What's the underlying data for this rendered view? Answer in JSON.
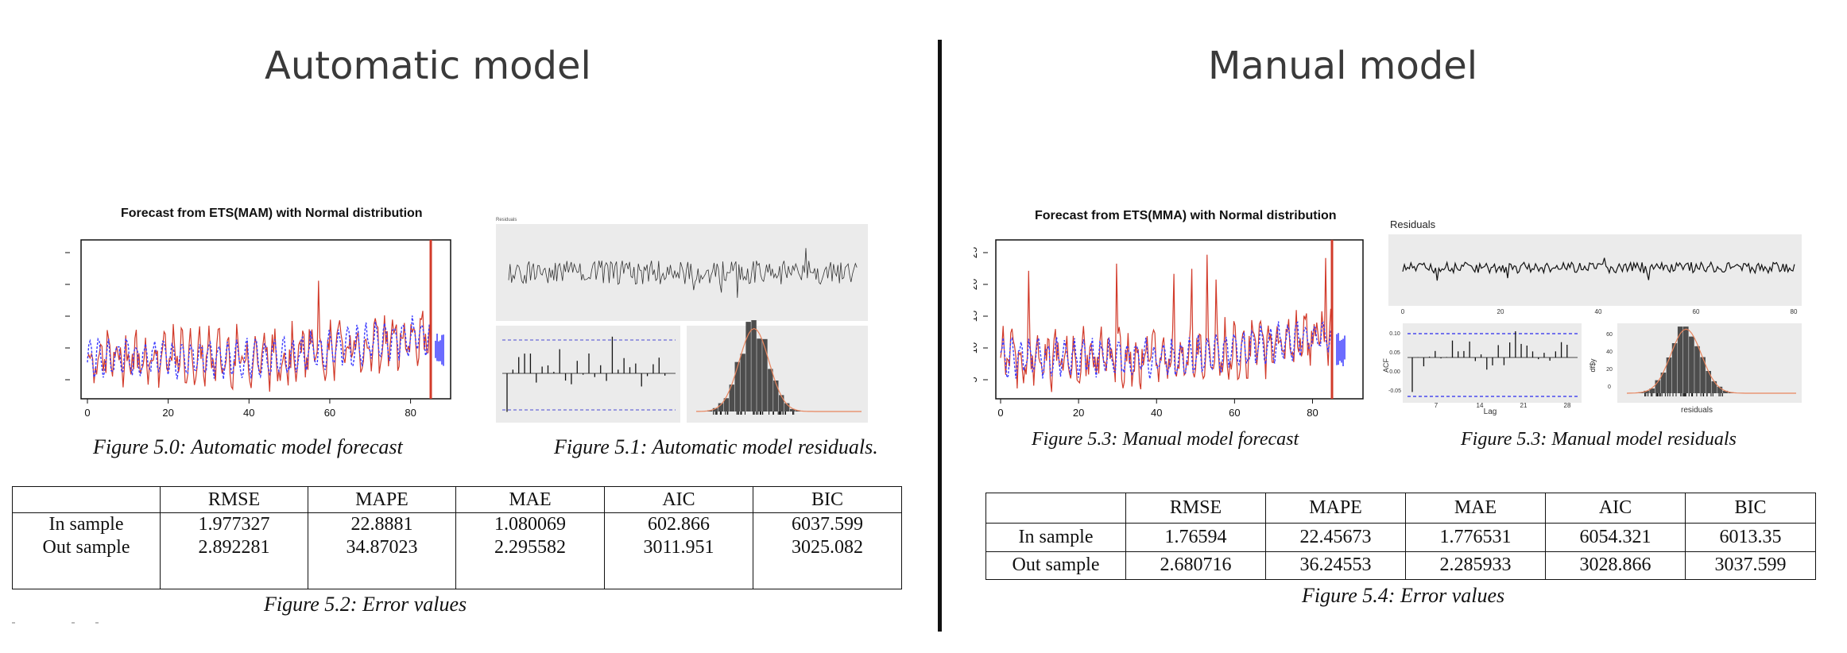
{
  "left": {
    "heading": "Automatic model",
    "forecast": {
      "title": "Forecast from ETS(MAM) with Normal distribution",
      "y_ticks": [
        "5",
        "10",
        "15",
        "20",
        "25"
      ],
      "x_ticks": [
        "0",
        "20",
        "40",
        "60",
        "80"
      ]
    },
    "residual_panel": {
      "title": "Residuals"
    },
    "caption_forecast": "Figure 5.0: Automatic model forecast",
    "caption_residuals": "Figure 5.1: Automatic model residuals.",
    "table": {
      "headers": [
        "",
        "RMSE",
        "MAPE",
        "MAE",
        "AIC",
        "BIC"
      ],
      "rows": [
        [
          "In sample",
          "1.977327",
          "22.8881",
          "1.080069",
          "602.866",
          "6037.599"
        ],
        [
          "Out sample",
          "2.892281",
          "34.87023",
          "2.295582",
          "3011.951",
          "3025.082"
        ]
      ]
    },
    "caption_table": "Figure 5.2: Error values"
  },
  "right": {
    "heading": "Manual model",
    "forecast": {
      "title": "Forecast from ETS(MMA) with Normal distribution",
      "y_ticks": [
        "5",
        "10",
        "15",
        "20",
        "25"
      ],
      "x_ticks": [
        "0",
        "20",
        "40",
        "60",
        "80"
      ]
    },
    "residual_panel": {
      "title": "Residuals",
      "x_ticks": [
        "0",
        "20",
        "40",
        "60",
        "80"
      ],
      "acf_ylabel": "ACF",
      "acf_xlabel": "Lag",
      "acf_x_ticks": [
        "7",
        "14",
        "21",
        "28"
      ],
      "acf_y_ticks": [
        "0.10",
        "0.05",
        "0.00",
        "-0.05"
      ],
      "hist_ylabel": "df$y",
      "hist_xlabel": "residuals",
      "hist_y_ticks": [
        "60",
        "40",
        "20",
        "0"
      ]
    },
    "caption_forecast": "Figure 5.3: Manual model forecast",
    "caption_residuals": "Figure 5.3: Manual model residuals",
    "table": {
      "headers": [
        "",
        "RMSE",
        "MAPE",
        "MAE",
        "AIC",
        "BIC"
      ],
      "rows": [
        [
          "In sample",
          "1.76594",
          "22.45673",
          "1.776531",
          "6054.321",
          "6013.35"
        ],
        [
          "Out sample",
          "2.680716",
          "36.24553",
          "2.285933",
          "3028.866",
          "3037.599"
        ]
      ]
    },
    "caption_table": "Figure 5.4: Error values"
  },
  "colors": {
    "series_red": "#d23a2a",
    "series_blue": "#3a3aff",
    "panel_gray": "#ebebeb",
    "hist_dark": "#4d4d4d"
  }
}
